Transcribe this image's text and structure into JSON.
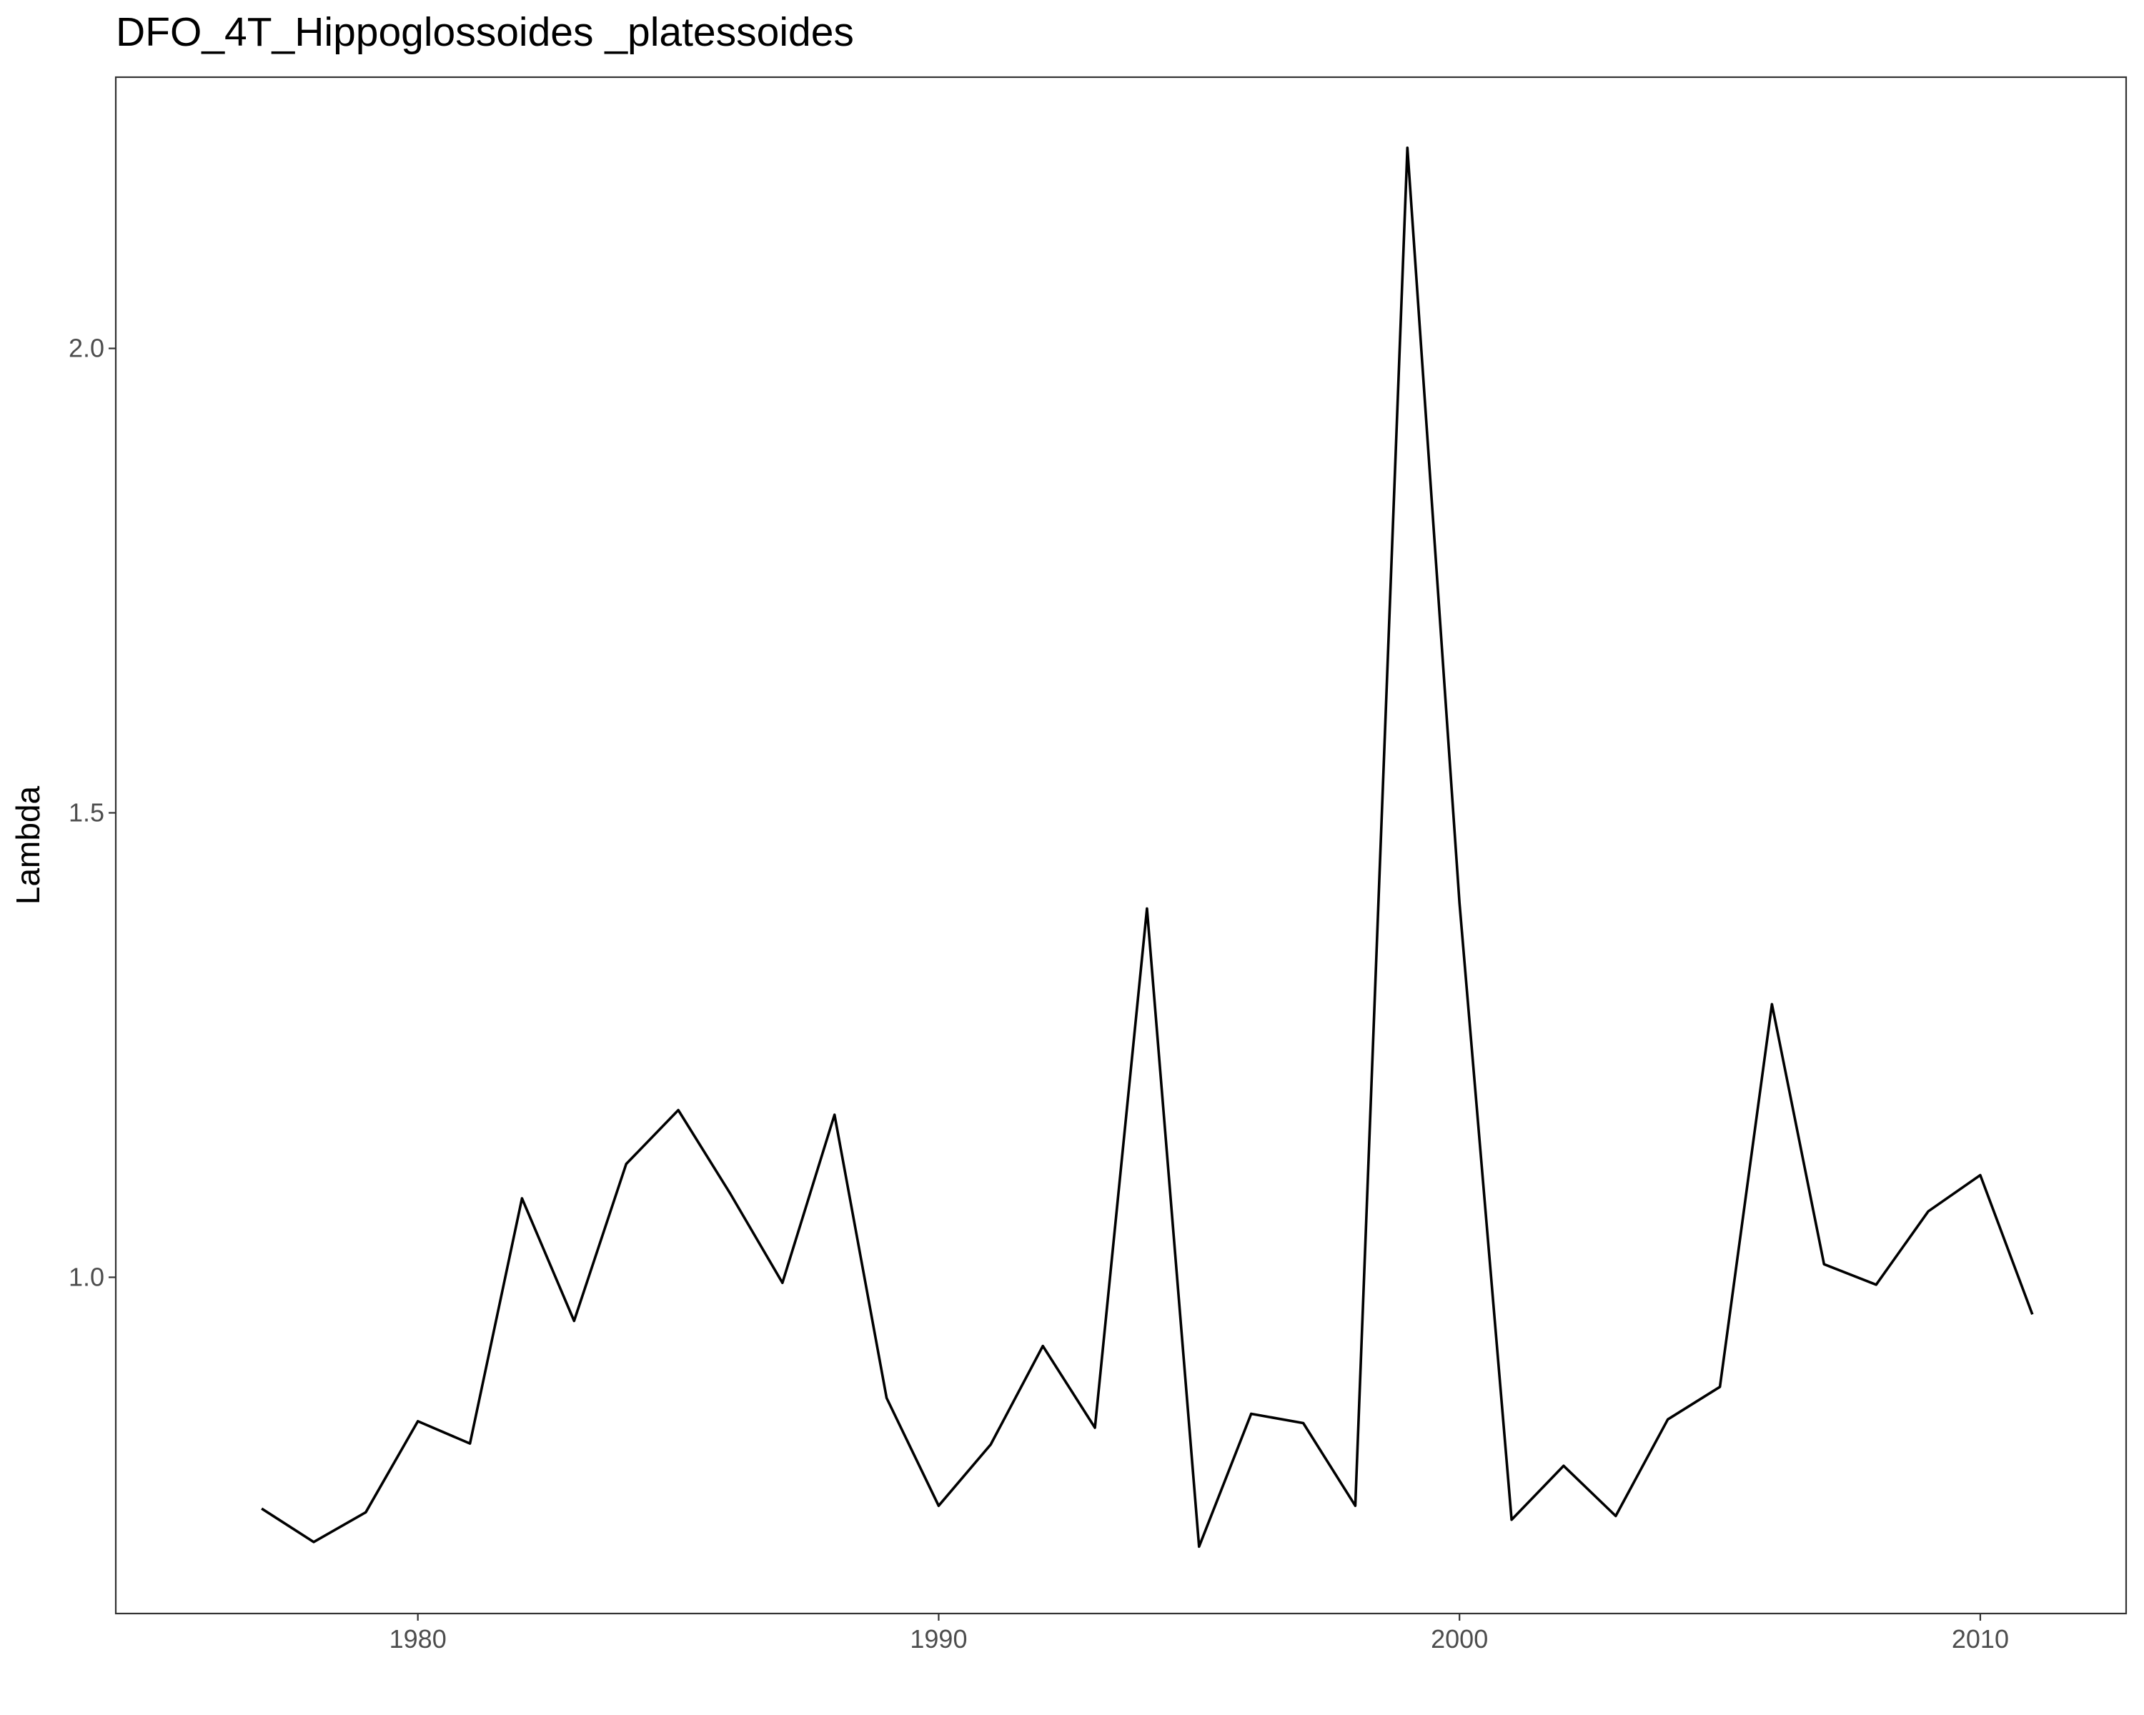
{
  "chart_data": {
    "type": "line",
    "title": "DFO_4T_Hippoglossoides _platessoides",
    "xlabel": "",
    "ylabel": "Lambda",
    "xlim": [
      1974.2,
      2012.8
    ],
    "ylim": [
      0.638,
      2.292
    ],
    "x_ticks": [
      1980,
      1990,
      2000,
      2010
    ],
    "x_tick_labels": [
      "1980",
      "1990",
      "2000",
      "2010"
    ],
    "y_ticks": [
      1.0,
      1.5,
      2.0
    ],
    "y_tick_labels": [
      "1.0",
      "1.5",
      "2.0"
    ],
    "grid": false,
    "legend": "none",
    "line_color": "#000000",
    "panel_border_color": "#333333",
    "series": [
      {
        "x": [
          1977,
          1978,
          1979,
          1980,
          1981,
          1982,
          1983,
          1984,
          1985,
          1986,
          1987,
          1988,
          1989,
          1990,
          1991,
          1992,
          1993,
          1994,
          1995,
          1996,
          1997,
          1998,
          1999,
          2000,
          2001,
          2002,
          2003,
          2004,
          2005,
          2006,
          2007,
          2008,
          2009,
          2010,
          2011
        ],
        "values": [
          0.751,
          0.715,
          0.747,
          0.845,
          0.821,
          1.085,
          0.953,
          1.122,
          1.18,
          1.09,
          0.994,
          1.175,
          0.87,
          0.754,
          0.82,
          0.926,
          0.838,
          1.397,
          0.71,
          0.853,
          0.843,
          0.754,
          2.216,
          1.403,
          0.739,
          0.797,
          0.743,
          0.847,
          0.882,
          1.294,
          1.014,
          0.992,
          1.071,
          1.11,
          0.96
        ]
      }
    ]
  }
}
